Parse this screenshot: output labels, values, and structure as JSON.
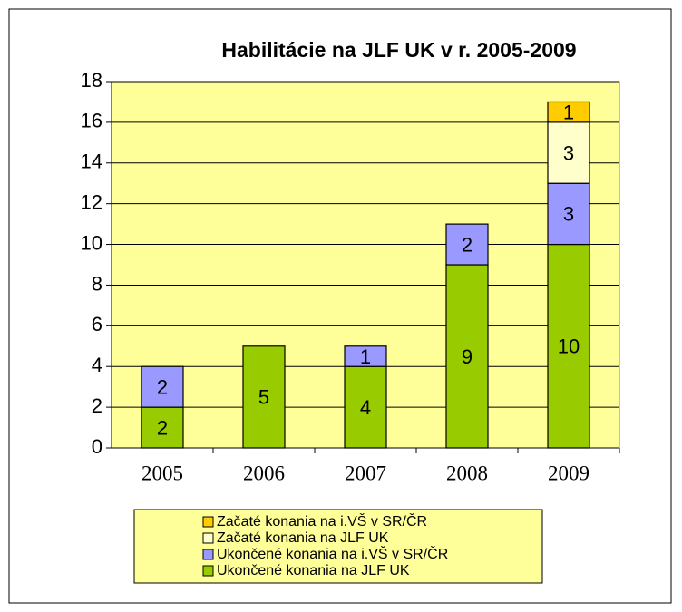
{
  "chart_data": {
    "type": "stacked_bar",
    "title": "Habilitácie na JLF UK v r. 2005-2009",
    "categories": [
      "2005",
      "2006",
      "2007",
      "2008",
      "2009"
    ],
    "series": [
      {
        "name": "Ukončené konania na JLF UK",
        "color": "#99cc00",
        "values": [
          2,
          5,
          4,
          9,
          10
        ]
      },
      {
        "name": "Ukončené konania na i.VŠ v SR/ČR",
        "color": "#9999ff",
        "values": [
          2,
          null,
          1,
          2,
          3
        ]
      },
      {
        "name": "Začaté konania na JLF UK",
        "color": "#ffffcc",
        "values": [
          null,
          null,
          null,
          null,
          3
        ]
      },
      {
        "name": "Začaté konania na i.VŠ v SR/ČR",
        "color": "#ffcc00",
        "values": [
          null,
          null,
          null,
          null,
          1
        ]
      }
    ],
    "ylim": [
      0,
      18
    ],
    "yticks": [
      0,
      2,
      4,
      6,
      8,
      10,
      12,
      14,
      16,
      18
    ],
    "grid": true
  }
}
